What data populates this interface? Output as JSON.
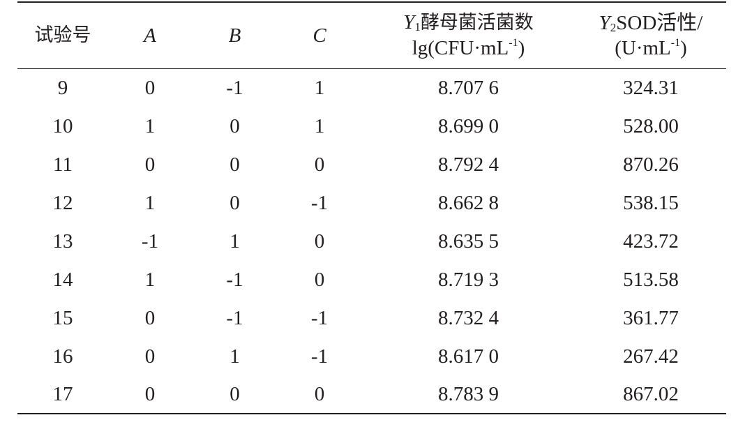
{
  "table": {
    "headers": {
      "trial": "试验号",
      "a": "A",
      "b": "B",
      "c": "C",
      "y1": {
        "var": "Y",
        "sub": "1",
        "name": "酵母菌活菌数",
        "unit_pre": "lg(CFU·mL",
        "unit_sup": "-1",
        "unit_post": ")"
      },
      "y2": {
        "var": "Y",
        "sub": "2",
        "name": "SOD活性/",
        "unit_pre": "(U·mL",
        "unit_sup": "-1",
        "unit_post": ")"
      }
    },
    "rows": [
      [
        "9",
        "0",
        "-1",
        "1",
        "8.707 6",
        "324.31"
      ],
      [
        "10",
        "1",
        "0",
        "1",
        "8.699 0",
        "528.00"
      ],
      [
        "11",
        "0",
        "0",
        "0",
        "8.792 4",
        "870.26"
      ],
      [
        "12",
        "1",
        "0",
        "-1",
        "8.662 8",
        "538.15"
      ],
      [
        "13",
        "-1",
        "1",
        "0",
        "8.635 5",
        "423.72"
      ],
      [
        "14",
        "1",
        "-1",
        "0",
        "8.719 3",
        "513.58"
      ],
      [
        "15",
        "0",
        "-1",
        "-1",
        "8.732 4",
        "361.77"
      ],
      [
        "16",
        "0",
        "1",
        "-1",
        "8.617 0",
        "267.42"
      ],
      [
        "17",
        "0",
        "0",
        "0",
        "8.783 9",
        "867.02"
      ]
    ]
  }
}
